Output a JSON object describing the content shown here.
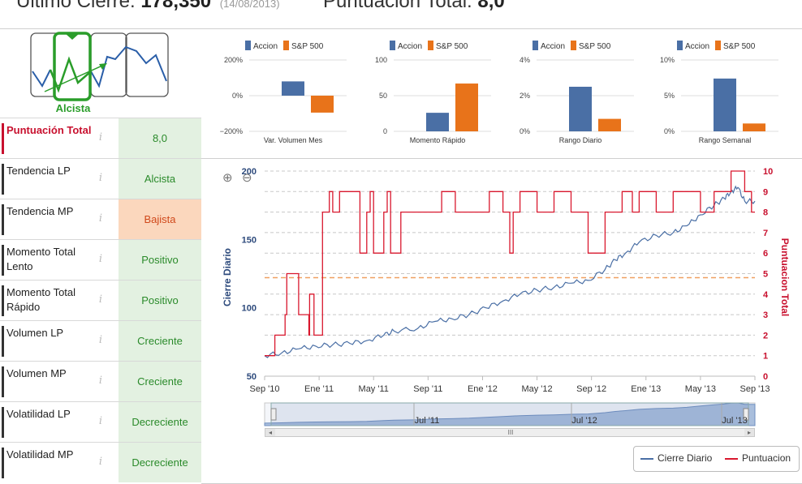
{
  "header": {
    "last_close_label": "Ultimo Cierre:",
    "last_close_value": "178,350",
    "last_close_date": "(14/08/2013)",
    "total_score_label": "Puntuacion Total:",
    "total_score_value": "8,0"
  },
  "trend_badge": {
    "label": "Alcista"
  },
  "scores": [
    {
      "name": "Puntuación Total",
      "value": "8,0",
      "tone": "green"
    },
    {
      "name": "Tendencia LP",
      "value": "Alcista",
      "tone": "green"
    },
    {
      "name": "Tendencia MP",
      "value": "Bajista",
      "tone": "orange"
    },
    {
      "name": "Momento Total Lento",
      "value": "Positivo",
      "tone": "green"
    },
    {
      "name": "Momento Total Rápido",
      "value": "Positivo",
      "tone": "green"
    },
    {
      "name": "Volumen LP",
      "value": "Creciente",
      "tone": "green"
    },
    {
      "name": "Volumen MP",
      "value": "Creciente",
      "tone": "green"
    },
    {
      "name": "Volatilidad LP",
      "value": "Decreciente",
      "tone": "green"
    },
    {
      "name": "Volatilidad MP",
      "value": "Decreciente",
      "tone": "green"
    }
  ],
  "info_glyph": "i",
  "colors": {
    "accion": "#4a6fa5",
    "sp500": "#e8731a",
    "price_line": "#4a6fa5",
    "score_line": "#d9182e",
    "threshold": "#f0a060"
  },
  "chart_data": [
    {
      "type": "bar",
      "categories": [
        "Var. Volumen Mes"
      ],
      "series": [
        {
          "name": "Accion",
          "values": [
            80
          ]
        },
        {
          "name": "S&P 500",
          "values": [
            -95
          ]
        }
      ],
      "ylim": [
        -200,
        200
      ],
      "yticks": [
        "200%",
        "0%",
        "−200%"
      ],
      "legend": "top-center"
    },
    {
      "type": "bar",
      "categories": [
        "Momento Rápido"
      ],
      "series": [
        {
          "name": "Accion",
          "values": [
            26
          ]
        },
        {
          "name": "S&P 500",
          "values": [
            67
          ]
        }
      ],
      "ylim": [
        0,
        100
      ],
      "yticks": [
        "100",
        "50",
        "0"
      ],
      "legend": "top-center"
    },
    {
      "type": "bar",
      "categories": [
        "Rango Diario"
      ],
      "series": [
        {
          "name": "Accion",
          "values": [
            2.5
          ]
        },
        {
          "name": "S&P 500",
          "values": [
            0.7
          ]
        }
      ],
      "ylim": [
        0,
        4
      ],
      "yticks": [
        "4%",
        "2%",
        "0%"
      ],
      "legend": "top-center"
    },
    {
      "type": "bar",
      "categories": [
        "Rango Semanal"
      ],
      "series": [
        {
          "name": "Accion",
          "values": [
            7.4
          ]
        },
        {
          "name": "S&P 500",
          "values": [
            1.1
          ]
        }
      ],
      "ylim": [
        0,
        10
      ],
      "yticks": [
        "10%",
        "5%",
        "0%"
      ],
      "legend": "top-center"
    },
    {
      "type": "line",
      "ylabel": "Cierre Diario",
      "y2label": "Puntuacion Total",
      "ylim": [
        50,
        200
      ],
      "y2lim": [
        0,
        10
      ],
      "yticks": [
        "50",
        "100",
        "150",
        "200"
      ],
      "y2ticks": [
        "0",
        "1",
        "2",
        "3",
        "4",
        "5",
        "6",
        "7",
        "8",
        "9",
        "10"
      ],
      "xticks": [
        "Sep '10",
        "Ene '11",
        "May '11",
        "Sep '11",
        "Ene '12",
        "May '12",
        "Sep '12",
        "Ene '13",
        "May '13",
        "Sep '13"
      ],
      "threshold": 4.8,
      "grid": true,
      "legend": "bottom-right",
      "series": [
        {
          "name": "Cierre Diario",
          "x": [
            0,
            5,
            10,
            15,
            20,
            25,
            30,
            35,
            38,
            45,
            50,
            55,
            60,
            65,
            70,
            75,
            80,
            85,
            90,
            95,
            100,
            103,
            106,
            110,
            115,
            120,
            124,
            128,
            132,
            135,
            137,
            139,
            141,
            144
          ],
          "y": [
            65,
            67,
            70,
            72,
            73,
            74,
            76,
            80,
            83,
            85,
            90,
            92,
            95,
            100,
            105,
            110,
            113,
            115,
            118,
            120,
            128,
            135,
            140,
            148,
            153,
            155,
            160,
            168,
            175,
            180,
            185,
            188,
            178,
            178
          ]
        },
        {
          "name": "Puntuacion",
          "x": [
            0,
            3,
            6,
            6.5,
            8,
            10,
            13,
            13.2,
            14.5,
            15,
            17,
            19,
            20,
            22,
            28,
            30,
            31,
            32,
            35,
            36,
            37,
            40,
            45,
            52,
            56,
            60,
            66,
            70,
            72,
            73,
            75,
            80,
            85,
            90,
            95,
            100,
            105,
            108,
            110,
            115,
            120,
            124,
            128,
            132,
            135,
            137,
            139,
            141,
            143,
            144
          ],
          "y": [
            1,
            2,
            3,
            5,
            5,
            3,
            2,
            4,
            2,
            2,
            8,
            9,
            8,
            9,
            6,
            8,
            9,
            6,
            8,
            9,
            6,
            8,
            8,
            9,
            8,
            8,
            9,
            8,
            6,
            8,
            9,
            8,
            9,
            8,
            6,
            8,
            9,
            8,
            9,
            8,
            9,
            9,
            8,
            9,
            9,
            10,
            10,
            9,
            8,
            8
          ]
        }
      ]
    }
  ],
  "zoom": {
    "in_glyph": "⊕",
    "out_glyph": "⊖"
  },
  "navigator": {
    "labels": [
      "Jul '11",
      "Jul '12",
      "Jul '13"
    ],
    "scroll_glyph": "III"
  }
}
